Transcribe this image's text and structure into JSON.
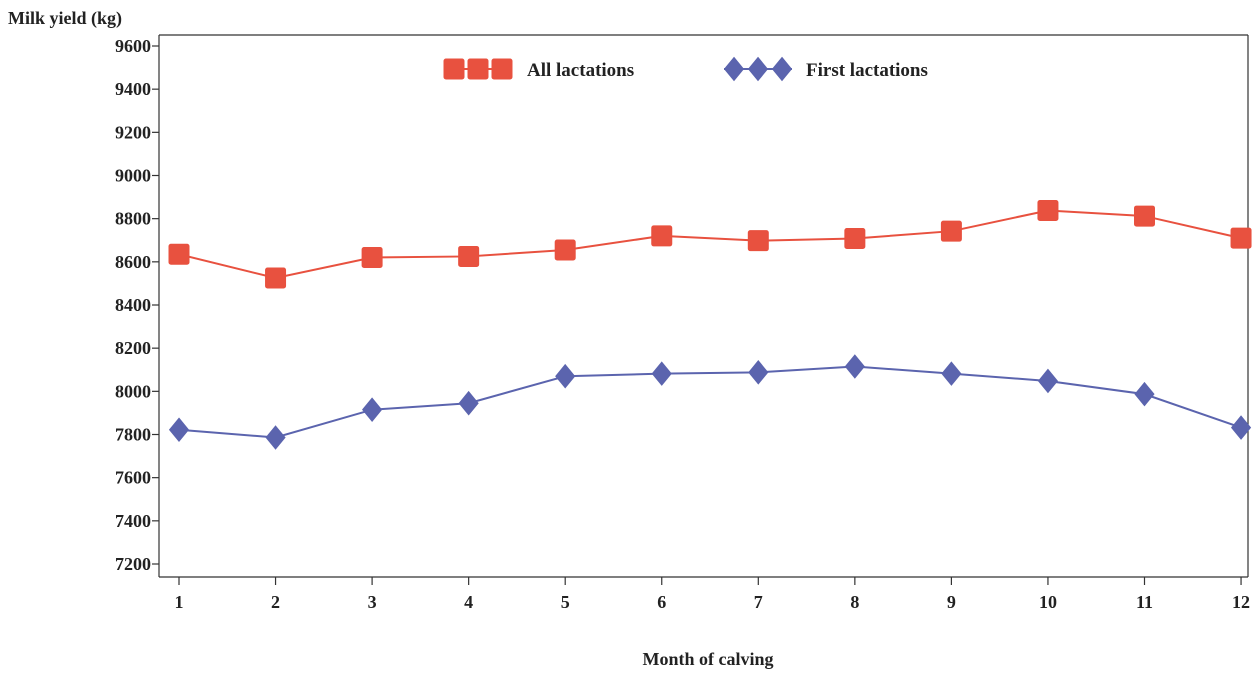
{
  "chart_data": {
    "type": "line",
    "xlabel": "Month of calving",
    "ylabel": "Milk yield (kg)",
    "x": [
      1,
      2,
      3,
      4,
      5,
      6,
      7,
      8,
      9,
      10,
      11,
      12
    ],
    "ylim": [
      7200,
      9600
    ],
    "yticks": [
      7200,
      7400,
      7600,
      7800,
      8000,
      8200,
      8400,
      8600,
      8800,
      9000,
      9200,
      9400,
      9600
    ],
    "grid": false,
    "legend_position": "top-center",
    "series": [
      {
        "name": "All lactations",
        "color": "#E8513F",
        "marker": "square",
        "values": [
          8635,
          8525,
          8620,
          8625,
          8655,
          8720,
          8698,
          8708,
          8742,
          8838,
          8812,
          8710
        ]
      },
      {
        "name": "First lactations",
        "color": "#5B64AE",
        "marker": "diamond",
        "values": [
          7822,
          7786,
          7915,
          7945,
          8070,
          8082,
          8088,
          8115,
          8082,
          8048,
          7987,
          7832
        ]
      }
    ]
  }
}
